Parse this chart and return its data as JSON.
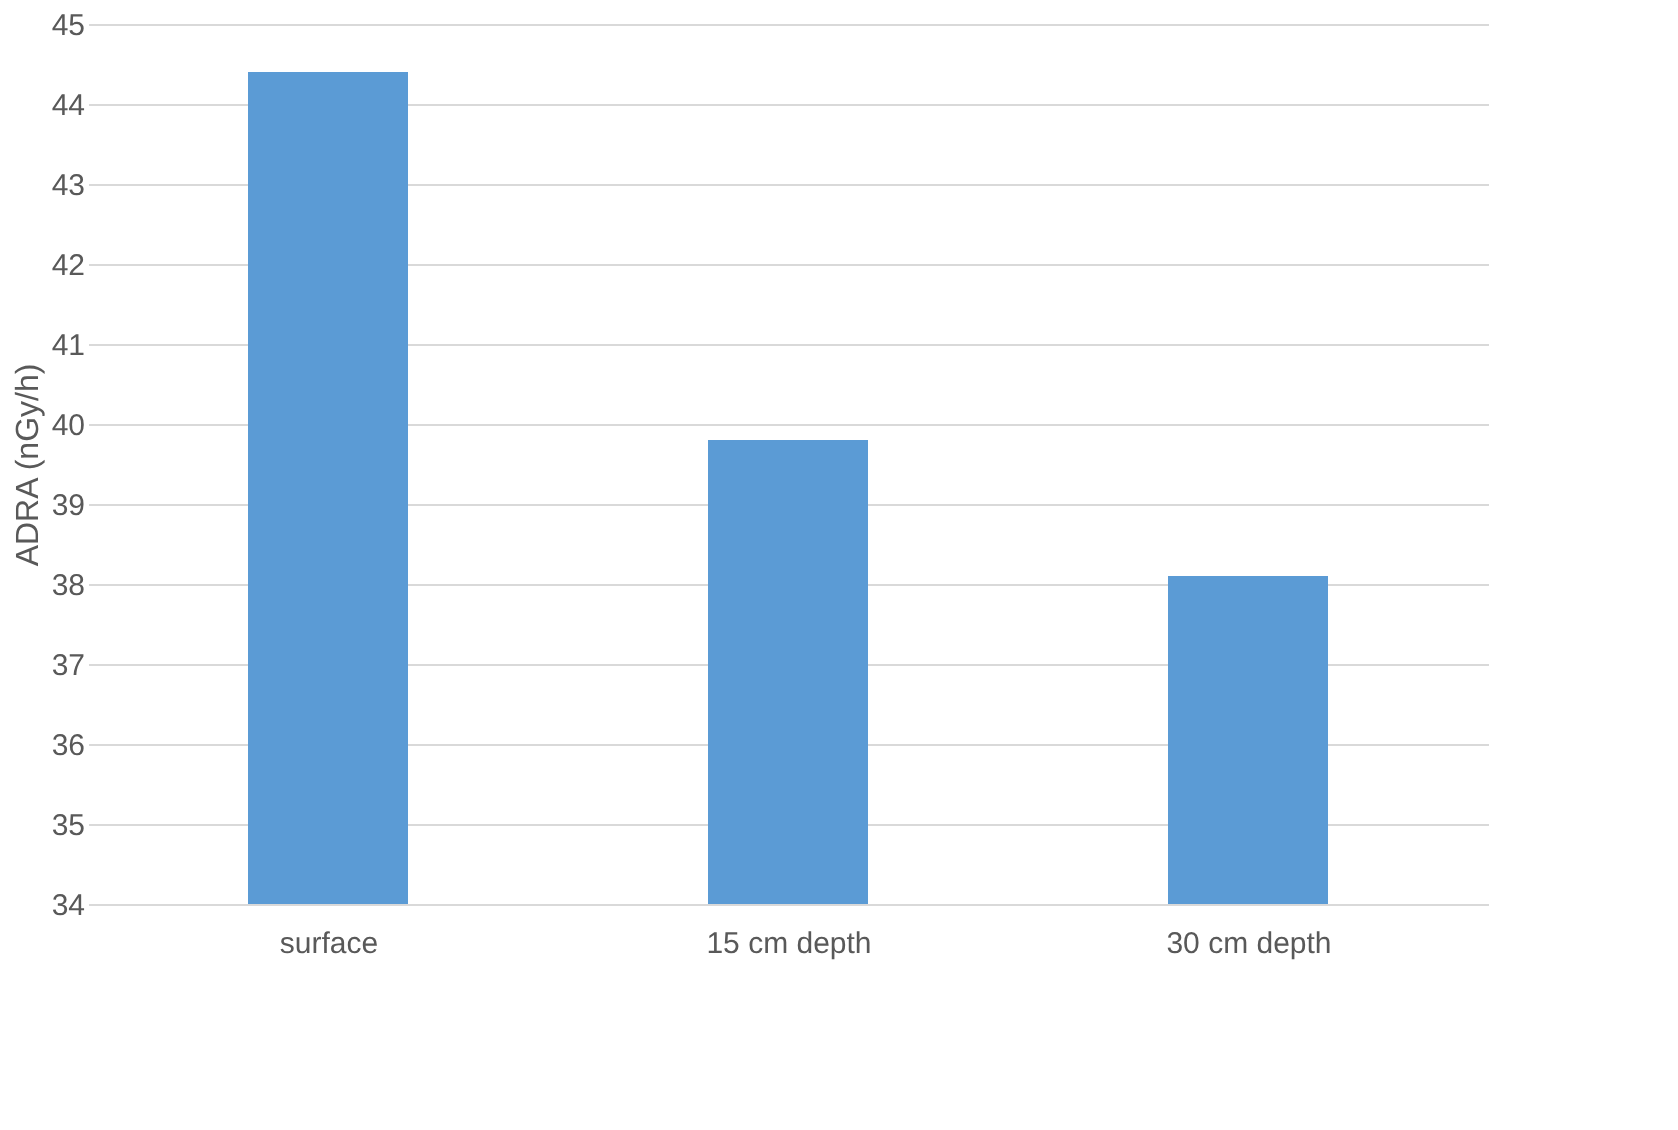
{
  "chart_data": {
    "type": "bar",
    "ylabel": "ADRA (nGy/h)",
    "categories": [
      "surface",
      "15 cm depth",
      "30 cm depth"
    ],
    "values": [
      44.4,
      39.8,
      38.1
    ],
    "color": "#5b9bd5",
    "ylim": [
      34,
      45
    ],
    "yticks": [
      34,
      35,
      36,
      37,
      38,
      39,
      40,
      41,
      42,
      43,
      44,
      45
    ],
    "grid": "y"
  }
}
